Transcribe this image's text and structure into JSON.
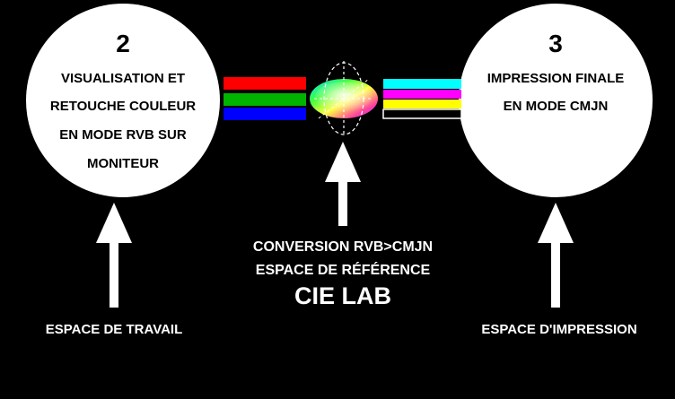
{
  "left_circle": {
    "number": "2",
    "lines": [
      "VISUALISATION ET",
      "RETOUCHE COULEUR",
      "EN MODE RVB SUR",
      "MONITEUR"
    ]
  },
  "right_circle": {
    "number": "3",
    "lines": [
      "IMPRESSION FINALE",
      "EN MODE CMJN"
    ]
  },
  "center": {
    "lines": [
      "CONVERSION RVB>CMJN",
      "ESPACE DE RÉFÉRENCE"
    ],
    "title": "CIE LAB"
  },
  "bottom": {
    "left": "ESPACE DE TRAVAIL",
    "right": "ESPACE D'IMPRESSION"
  },
  "colors": {
    "background": "#000000",
    "foreground": "#ffffff",
    "rgb_bars": [
      "#ff0000",
      "#00b400",
      "#0000ff"
    ],
    "cmyk_bars": [
      "#00ffff",
      "#ff00ff",
      "#ffff00",
      "#000000"
    ]
  }
}
